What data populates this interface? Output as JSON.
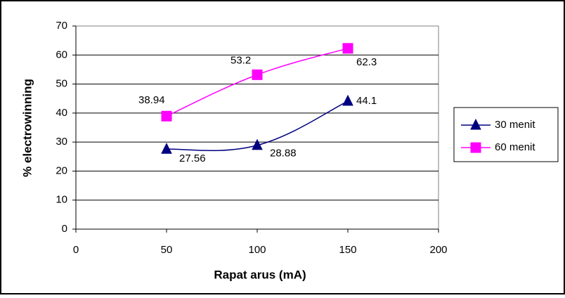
{
  "chart_data": {
    "type": "line",
    "x_label": "Rapat arus (mA)",
    "y_label": "% electrowinning",
    "x": [
      50,
      100,
      150
    ],
    "series": [
      {
        "name": "30 menit",
        "color": "#000080",
        "marker": "triangle",
        "values": [
          27.56,
          28.88,
          44.1
        ]
      },
      {
        "name": "60 menit",
        "color": "#ff00ff",
        "marker": "square",
        "values": [
          38.94,
          53.2,
          62.3
        ]
      }
    ],
    "xlim": [
      0,
      200
    ],
    "xticks": [
      0,
      50,
      100,
      150,
      200
    ],
    "ylim": [
      0,
      70
    ],
    "yticks": [
      0,
      10,
      20,
      30,
      40,
      50,
      60,
      70
    ],
    "grid": true,
    "legend": "right"
  }
}
